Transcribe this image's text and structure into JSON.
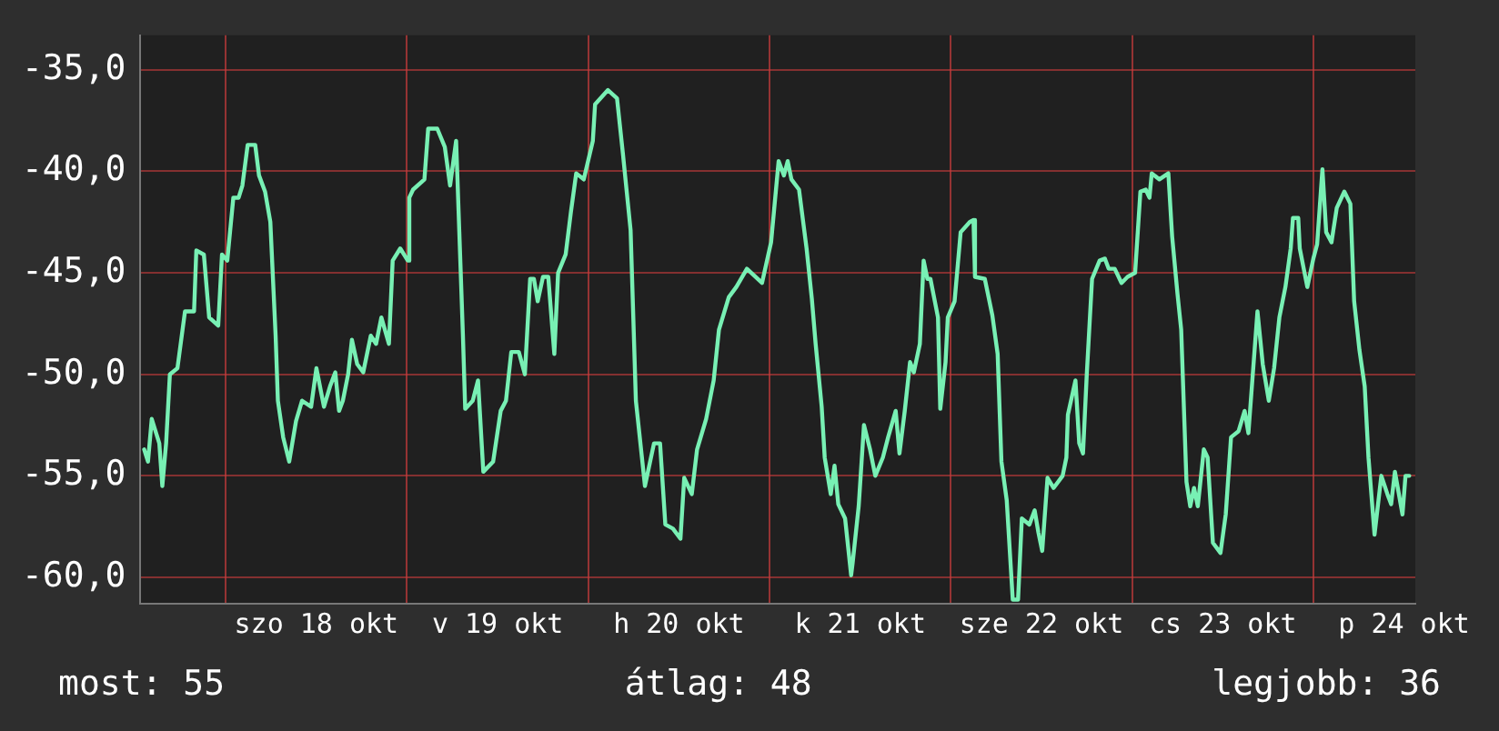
{
  "chart_data": {
    "type": "line",
    "annotations": [
      "most: 55",
      "átlag: 48",
      "legjobb: 36"
    ],
    "xlim": [
      "--10-17T12:42",
      "--10-24T13:30"
    ],
    "ylim": [
      -61.3,
      -33.3
    ],
    "xticks": [
      {
        "value": "--10-18T00:00",
        "label": null
      },
      {
        "value": "--10-18T12:00",
        "label": "szo 18 okt"
      },
      {
        "value": "--10-19T00:00",
        "label": null
      },
      {
        "value": "--10-19T12:00",
        "label": "v 19 okt"
      },
      {
        "value": "--10-20T00:00",
        "label": null
      },
      {
        "value": "--10-20T12:00",
        "label": "h 20 okt"
      },
      {
        "value": "--10-21T00:00",
        "label": null
      },
      {
        "value": "--10-21T12:00",
        "label": "k 21 okt"
      },
      {
        "value": "--10-22T00:00",
        "label": null
      },
      {
        "value": "--10-22T12:00",
        "label": "sze 22 okt"
      },
      {
        "value": "--10-23T00:00",
        "label": null
      },
      {
        "value": "--10-23T12:00",
        "label": "cs 23 okt"
      },
      {
        "value": "--10-24T00:00",
        "label": null
      },
      {
        "value": "--10-24T12:00",
        "label": "p 24 okt"
      }
    ],
    "yticks": [
      {
        "value": -35,
        "label": "-35,0"
      },
      {
        "value": -40,
        "label": "-40,0"
      },
      {
        "value": -45,
        "label": "-45,0"
      },
      {
        "value": -50,
        "label": "-50,0"
      },
      {
        "value": -55,
        "label": "-55,0"
      },
      {
        "value": -60,
        "label": "-60,0"
      }
    ],
    "grid": true,
    "legend": false,
    "marker": "none",
    "line_style": "solid",
    "series": [
      {
        "color": "#78f0b4",
        "x": [
          "--10-17T13:12",
          "--10-17T13:42",
          "--10-17T14:12",
          "--10-17T15:12",
          "--10-17T15:36",
          "--10-17T16:06",
          "--10-17T16:36",
          "--10-17T17:36",
          "--10-17T18:36",
          "--10-17T19:48",
          "--10-17T20:06",
          "--10-17T21:06",
          "--10-17T21:48",
          "--10-17T23:00",
          "--10-17T23:30",
          "--10-18T00:12",
          "--10-18T01:00",
          "--10-18T01:42",
          "--10-18T02:12",
          "--10-18T02:54",
          "--10-18T03:54",
          "--10-18T04:24",
          "--10-18T05:12",
          "--10-18T05:54",
          "--10-18T06:36",
          "--10-18T06:54",
          "--10-18T07:36",
          "--10-18T08:24",
          "--10-18T09:18",
          "--10-18T10:06",
          "--10-18T11:18",
          "--10-18T12:00",
          "--10-18T13:00",
          "--10-18T13:48",
          "--10-18T14:30",
          "--10-18T15:00",
          "--10-18T15:30",
          "--10-18T16:12",
          "--10-18T16:42",
          "--10-18T17:24",
          "--10-18T18:12",
          "--10-18T19:12",
          "--10-18T19:54",
          "--10-18T20:36",
          "--10-18T21:36",
          "--10-18T22:06",
          "--10-18T23:06",
          "--10-19T00:06",
          "--10-19T00:18",
          "--10-19T00:48",
          "--10-19T02:18",
          "--10-19T02:48",
          "--10-19T04:00",
          "--10-19T05:00",
          "--10-19T05:42",
          "--10-19T06:30",
          "--10-19T07:24",
          "--10-19T07:42",
          "--10-19T08:42",
          "--10-19T09:24",
          "--10-19T10:06",
          "--10-19T11:24",
          "--10-19T12:24",
          "--10-19T13:06",
          "--10-19T13:48",
          "--10-19T14:48",
          "--10-19T15:36",
          "--10-19T16:18",
          "--10-19T16:48",
          "--10-19T17:18",
          "--10-19T18:00",
          "--10-19T18:42",
          "--10-19T19:30",
          "--10-19T20:00",
          "--10-19T21:00",
          "--10-19T21:42",
          "--10-19T22:24",
          "--10-19T23:24",
          "--10-20T00:36",
          "--10-20T00:54",
          "--10-20T02:36",
          "--10-20T03:48",
          "--10-20T04:36",
          "--10-20T05:36",
          "--10-20T06:18",
          "--10-20T07:30",
          "--10-20T08:42",
          "--10-20T09:30",
          "--10-20T10:12",
          "--10-20T11:12",
          "--10-20T12:12",
          "--10-20T12:42",
          "--10-20T13:42",
          "--10-20T14:24",
          "--10-20T15:36",
          "--10-20T16:36",
          "--10-20T17:18",
          "--10-20T18:36",
          "--10-20T19:36",
          "--10-20T21:00",
          "--10-20T23:00",
          "--10-21T00:12",
          "--10-21T01:12",
          "--10-21T01:54",
          "--10-21T02:24",
          "--10-21T02:54",
          "--10-21T03:54",
          "--10-21T04:54",
          "--10-21T05:36",
          "--10-21T06:06",
          "--10-21T06:54",
          "--10-21T07:18",
          "--10-21T08:06",
          "--10-21T08:36",
          "--10-21T09:06",
          "--10-21T10:00",
          "--10-21T10:48",
          "--10-21T11:00",
          "--10-21T11:48",
          "--10-21T12:30",
          "--10-21T13:18",
          "--10-21T14:00",
          "--10-21T15:00",
          "--10-21T15:42",
          "--10-21T16:42",
          "--10-21T17:12",
          "--10-21T17:54",
          "--10-21T18:36",
          "--10-21T19:06",
          "--10-21T19:54",
          "--10-21T20:24",
          "--10-21T20:54",
          "--10-21T21:18",
          "--10-21T22:18",
          "--10-21T22:36",
          "--10-21T23:18",
          "--10-21T23:36",
          "--10-22T00:30",
          "--10-22T01:18",
          "--10-22T02:30",
          "--10-22T03:00",
          "--10-22T03:12",
          "--10-22T04:30",
          "--10-22T05:30",
          "--10-22T06:12",
          "--10-22T06:42",
          "--10-22T07:24",
          "--10-22T08:12",
          "--10-22T08:54",
          "--10-22T09:24",
          "--10-22T10:24",
          "--10-22T11:06",
          "--10-22T11:36",
          "--10-22T12:06",
          "--10-22T12:48",
          "--10-22T13:36",
          "--10-22T14:48",
          "--10-22T15:18",
          "--10-22T15:30",
          "--10-22T16:30",
          "--10-22T17:00",
          "--10-22T17:30",
          "--10-22T18:00",
          "--10-22T18:42",
          "--10-22T19:42",
          "--10-22T20:24",
          "--10-22T20:54",
          "--10-22T21:42",
          "--10-22T22:36",
          "--10-22T23:24",
          "--10-23T00:24",
          "--10-23T01:06",
          "--10-23T01:48",
          "--10-23T02:18",
          "--10-23T02:36",
          "--10-23T03:36",
          "--10-23T04:48",
          "--10-23T05:18",
          "--10-23T06:00",
          "--10-23T06:30",
          "--10-23T07:12",
          "--10-23T07:42",
          "--10-23T08:12",
          "--10-23T08:42",
          "--10-23T09:30",
          "--10-23T10:00",
          "--10-23T10:42",
          "--10-23T11:42",
          "--10-23T12:24",
          "--10-23T13:06",
          "--10-23T14:06",
          "--10-23T14:54",
          "--10-23T15:24",
          "--10-23T15:48",
          "--10-23T16:36",
          "--10-23T17:18",
          "--10-23T18:06",
          "--10-23T18:48",
          "--10-23T19:30",
          "--10-23T20:18",
          "--10-23T21:00",
          "--10-23T21:18",
          "--10-23T22:00",
          "--10-23T22:12",
          "--10-23T23:12",
          "--10-24T00:00",
          "--10-24T00:30",
          "--10-24T01:12",
          "--10-24T01:42",
          "--10-24T02:24",
          "--10-24T03:06",
          "--10-24T04:06",
          "--10-24T04:54",
          "--10-24T05:24",
          "--10-24T06:06",
          "--10-24T06:48",
          "--10-24T07:18",
          "--10-24T08:06",
          "--10-24T09:00",
          "--10-24T09:48",
          "--10-24T10:18",
          "--10-24T10:48",
          "--10-24T11:48",
          "--10-24T12:12",
          "--10-24T12:42"
        ],
        "values": [
          -53.7,
          -54.3,
          -52.2,
          -53.4,
          -55.5,
          -53.4,
          -50.0,
          -49.7,
          -46.9,
          -46.9,
          -43.9,
          -44.1,
          -47.2,
          -47.6,
          -44.1,
          -44.4,
          -41.3,
          -41.3,
          -40.7,
          -38.7,
          -38.7,
          -40.2,
          -41.0,
          -42.5,
          -48.1,
          -51.3,
          -53.1,
          -54.3,
          -52.3,
          -51.3,
          -51.6,
          -49.7,
          -51.6,
          -50.6,
          -49.9,
          -51.8,
          -51.3,
          -50.0,
          -48.3,
          -49.5,
          -49.9,
          -48.1,
          -48.5,
          -47.2,
          -48.5,
          -44.4,
          -43.8,
          -44.4,
          -41.3,
          -40.9,
          -40.4,
          -37.9,
          -37.9,
          -38.8,
          -40.7,
          -38.5,
          -48.1,
          -51.7,
          -51.3,
          -50.3,
          -54.8,
          -54.3,
          -51.8,
          -51.3,
          -48.9,
          -48.9,
          -50.0,
          -45.3,
          -45.3,
          -46.4,
          -45.2,
          -45.2,
          -49.0,
          -45.0,
          -44.1,
          -42.0,
          -40.1,
          -40.4,
          -38.5,
          -36.7,
          -36.0,
          -36.4,
          -39.2,
          -42.9,
          -51.3,
          -55.5,
          -53.4,
          -53.4,
          -57.4,
          -57.6,
          -58.1,
          -55.1,
          -55.9,
          -53.7,
          -52.2,
          -50.3,
          -47.8,
          -46.2,
          -45.7,
          -44.8,
          -45.5,
          -43.5,
          -39.5,
          -40.2,
          -39.5,
          -40.4,
          -40.9,
          -43.8,
          -46.3,
          -48.5,
          -51.6,
          -54.1,
          -55.9,
          -54.5,
          -56.4,
          -57.1,
          -59.9,
          -59.3,
          -56.5,
          -52.5,
          -53.7,
          -55.0,
          -54.1,
          -53.1,
          -51.8,
          -53.9,
          -51.8,
          -49.4,
          -49.9,
          -48.5,
          -44.4,
          -45.3,
          -45.3,
          -47.2,
          -51.7,
          -49.4,
          -47.2,
          -46.4,
          -43.0,
          -42.5,
          -42.4,
          -45.2,
          -45.3,
          -47.1,
          -49.0,
          -54.3,
          -56.2,
          -61.1,
          -61.1,
          -57.1,
          -57.4,
          -56.7,
          -57.8,
          -58.7,
          -55.1,
          -55.6,
          -55.0,
          -54.1,
          -52.0,
          -50.3,
          -53.4,
          -53.9,
          -50.0,
          -45.3,
          -44.4,
          -44.3,
          -44.8,
          -44.8,
          -45.5,
          -45.2,
          -45.0,
          -41.0,
          -40.9,
          -41.3,
          -40.1,
          -40.4,
          -40.1,
          -43.2,
          -46.0,
          -47.8,
          -55.3,
          -56.5,
          -55.6,
          -56.5,
          -53.7,
          -54.1,
          -58.3,
          -58.8,
          -56.9,
          -53.1,
          -52.8,
          -51.8,
          -52.9,
          -50.9,
          -46.9,
          -49.5,
          -51.3,
          -49.7,
          -47.2,
          -45.7,
          -43.8,
          -42.3,
          -42.3,
          -43.8,
          -45.7,
          -44.3,
          -43.6,
          -39.9,
          -43.0,
          -43.5,
          -41.8,
          -41.0,
          -41.6,
          -46.4,
          -48.8,
          -50.6,
          -54.1,
          -57.9,
          -55.0,
          -55.9,
          -56.4,
          -54.8,
          -56.9,
          -55.0,
          -55.0
        ]
      }
    ]
  }
}
